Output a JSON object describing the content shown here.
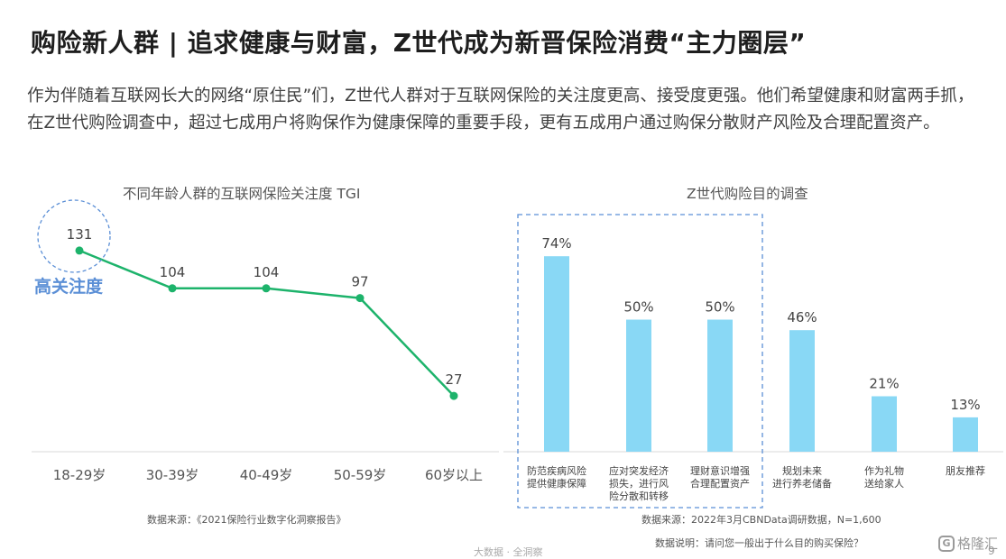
{
  "header": {
    "title": "购险新人群 | 追求健康与财富，Z世代成为新晋保险消费“主力圈层”",
    "subtitle": "作为伴随着互联网长大的网络“原住民”们，Z世代人群对于互联网保险的关注度更高、接受度更强。他们希望健康和财富两手抓，在Z世代购险调查中，超过七成用户将购保作为健康保障的重要手段，更有五成用户通过购保分散财产风险及合理配置资产。"
  },
  "chart_data": [
    {
      "type": "line",
      "title": "不同年龄人群的互联网保险关注度 TGI",
      "categories": [
        "18-29岁",
        "30-39岁",
        "40-49岁",
        "50-59岁",
        "60岁以上"
      ],
      "values": [
        131,
        104,
        104,
        97,
        27
      ],
      "data_labels": [
        "131",
        "104",
        "104",
        "97",
        "27"
      ],
      "annotation": "高关注度",
      "source": "数据来源：《2021保险行业数字化洞察报告》",
      "color": "#1db36b",
      "annotation_color": "#5b8fd6"
    },
    {
      "type": "bar",
      "title": "Z世代购险目的调查",
      "categories": [
        [
          "防范疾病风险",
          "提供健康保障"
        ],
        [
          "应对突发经济",
          "损失，进行风",
          "险分散和转移"
        ],
        [
          "理财意识增强",
          "合理配置资产"
        ],
        [
          "规划未来",
          "进行养老储备"
        ],
        [
          "作为礼物",
          "送给家人"
        ],
        [
          "朋友推荐"
        ]
      ],
      "values": [
        74,
        50,
        50,
        46,
        21,
        13
      ],
      "data_labels": [
        "74%",
        "50%",
        "50%",
        "46%",
        "21%",
        "13%"
      ],
      "highlight_indices": [
        0,
        1,
        2
      ],
      "source": "数据来源：2022年3月CBNData调研数据，N=1,600",
      "note": "数据说明：请问您一般出于什么目的购买保险？",
      "color": "#89d8f5",
      "highlight_color": "#5b8fd6"
    }
  ],
  "footer": {
    "text": "大数据 · 全洞察",
    "page": "9",
    "logo": "格隆汇",
    "logo_mark": "G"
  }
}
